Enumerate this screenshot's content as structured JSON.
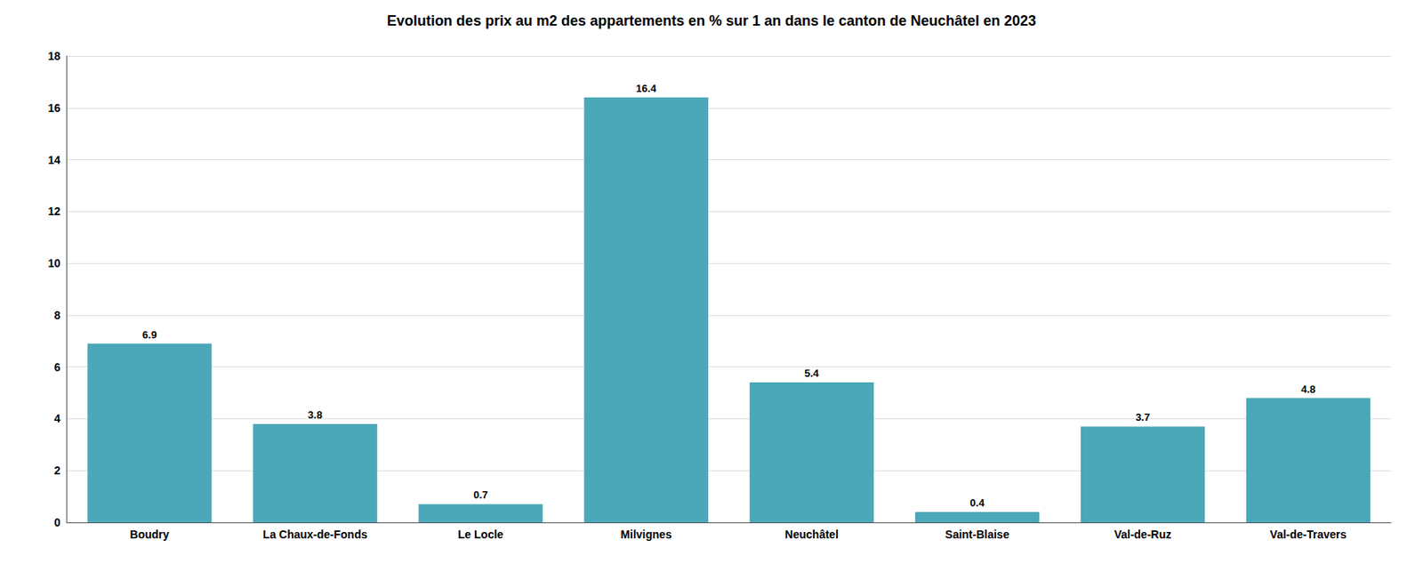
{
  "chart_data": {
    "type": "bar",
    "title": "Evolution des prix au m2 des appartements en % sur 1 an dans le canton de Neuchâtel en 2023",
    "categories": [
      "Boudry",
      "La Chaux-de-Fonds",
      "Le Locle",
      "Milvignes",
      "Neuchâtel",
      "Saint-Blaise",
      "Val-de-Ruz",
      "Val-de-Travers"
    ],
    "values": [
      6.9,
      3.8,
      0.7,
      16.4,
      5.4,
      0.4,
      3.7,
      4.8
    ],
    "color": "#4aa8b8",
    "ylim": [
      0,
      18
    ],
    "yticks": [
      0,
      2,
      4,
      6,
      8,
      10,
      12,
      14,
      16,
      18
    ],
    "grid": true,
    "data_labels": true
  }
}
